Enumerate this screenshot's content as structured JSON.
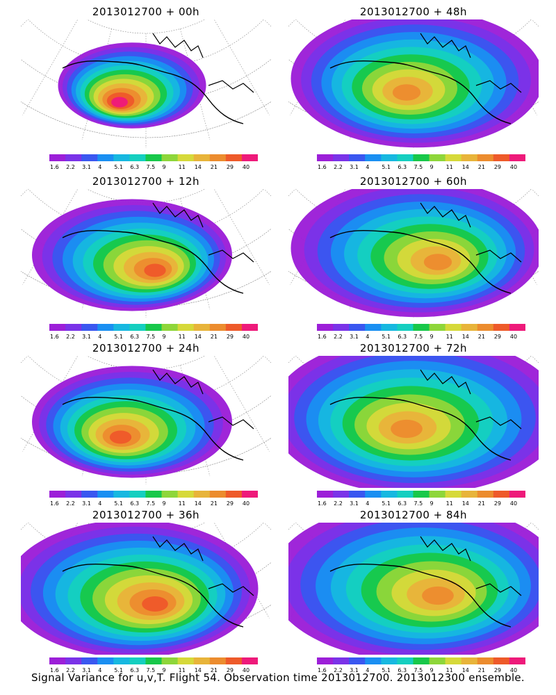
{
  "footer": "Signal Variance for u,v,T. Flight 54. Observation time 2013012700. 2013012300 ensemble.",
  "colorbar": {
    "ticks": [
      "1.6",
      "2.2",
      "3.1",
      "4",
      "5.1",
      "6.3",
      "7.5",
      "9",
      "11",
      "14",
      "21",
      "29",
      "40"
    ],
    "colors": [
      "#9c1fd8",
      "#7a33e8",
      "#3a57f0",
      "#1a8ff2",
      "#17b8e0",
      "#15cfc0",
      "#18c84a",
      "#8ed63a",
      "#d6d93a",
      "#e8b43a",
      "#ec8c2e",
      "#ee5a2a",
      "#ee1a7a"
    ]
  },
  "chart_data": [
    {
      "type": "heatmap",
      "title": "2013012700 + 00h",
      "colorbar_ticks": [
        "1.6",
        "2.2",
        "3.1",
        "4",
        "5.1",
        "6.3",
        "7.5",
        "9",
        "11",
        "14",
        "21",
        "29",
        "40"
      ],
      "peak_level": "40",
      "extent": "small"
    },
    {
      "type": "heatmap",
      "title": "2013012700 + 12h",
      "colorbar_ticks": [
        "1.6",
        "2.2",
        "3.1",
        "4",
        "5.1",
        "6.3",
        "7.5",
        "9",
        "11",
        "14",
        "21",
        "29",
        "40"
      ],
      "peak_level": "29",
      "extent": "medium"
    },
    {
      "type": "heatmap",
      "title": "2013012700 + 24h",
      "colorbar_ticks": [
        "1.6",
        "2.2",
        "3.1",
        "4",
        "5.1",
        "6.3",
        "7.5",
        "9",
        "11",
        "14",
        "21",
        "29",
        "40"
      ],
      "peak_level": "29",
      "extent": "medium"
    },
    {
      "type": "heatmap",
      "title": "2013012700 + 36h",
      "colorbar_ticks": [
        "1.6",
        "2.2",
        "3.1",
        "4",
        "5.1",
        "6.3",
        "7.5",
        "9",
        "11",
        "14",
        "21",
        "29",
        "40"
      ],
      "peak_level": "29",
      "extent": "large"
    },
    {
      "type": "heatmap",
      "title": "2013012700 + 48h",
      "colorbar_ticks": [
        "1.6",
        "2.2",
        "3.1",
        "4",
        "5.1",
        "6.3",
        "7.5",
        "9",
        "11",
        "14",
        "21",
        "29",
        "40"
      ],
      "peak_level": "21",
      "extent": "large"
    },
    {
      "type": "heatmap",
      "title": "2013012700 + 60h",
      "colorbar_ticks": [
        "1.6",
        "2.2",
        "3.1",
        "4",
        "5.1",
        "6.3",
        "7.5",
        "9",
        "11",
        "14",
        "21",
        "29",
        "40"
      ],
      "peak_level": "21",
      "extent": "large"
    },
    {
      "type": "heatmap",
      "title": "2013012700 + 72h",
      "colorbar_ticks": [
        "1.6",
        "2.2",
        "3.1",
        "4",
        "5.1",
        "6.3",
        "7.5",
        "9",
        "11",
        "14",
        "21",
        "29",
        "40"
      ],
      "peak_level": "21",
      "extent": "very-large"
    },
    {
      "type": "heatmap",
      "title": "2013012700 + 84h",
      "colorbar_ticks": [
        "1.6",
        "2.2",
        "3.1",
        "4",
        "5.1",
        "6.3",
        "7.5",
        "9",
        "11",
        "14",
        "21",
        "29",
        "40"
      ],
      "peak_level": "21",
      "extent": "very-large"
    }
  ]
}
